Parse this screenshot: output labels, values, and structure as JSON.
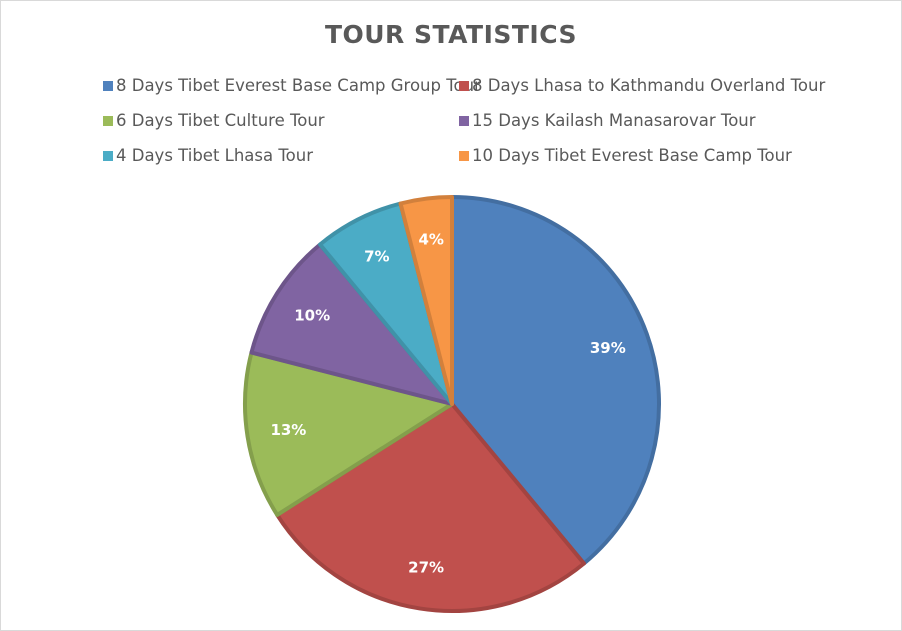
{
  "chart_data": {
    "type": "pie",
    "title": "TOUR STATISTICS",
    "legend_position": "top",
    "slices": [
      {
        "name": "8 Days Tibet Everest Base Camp Group Tour",
        "value": 39,
        "label": "39%",
        "color": "#4f81bd"
      },
      {
        "name": "8 Days Lhasa to Kathmandu Overland Tour",
        "value": 27,
        "label": "27%",
        "color": "#c0504d"
      },
      {
        "name": "6 Days Tibet Culture Tour",
        "value": 13,
        "label": "13%",
        "color": "#9bbb59"
      },
      {
        "name": "15 Days Kailash Manasarovar Tour",
        "value": 10,
        "label": "10%",
        "color": "#8064a2"
      },
      {
        "name": "4 Days Tibet Lhasa Tour",
        "value": 7,
        "label": "7%",
        "color": "#4bacc6"
      },
      {
        "name": "10 Days Tibet Everest Base Camp Tour",
        "value": 4,
        "label": "4%",
        "color": "#f79646"
      }
    ]
  }
}
